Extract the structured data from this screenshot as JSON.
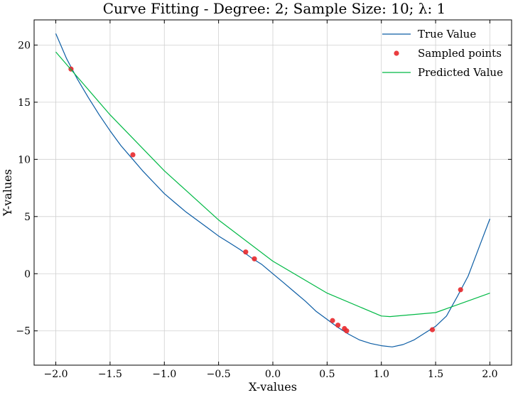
{
  "chart_data": {
    "type": "line",
    "title": "Curve Fitting - Degree: 2; Sample Size: 10; λ: 1",
    "xlabel": "X-values",
    "ylabel": "Y-values",
    "xlim": [
      -2.2,
      2.2
    ],
    "ylim": [
      -8.0,
      22.2
    ],
    "xticks": [
      -2.0,
      -1.5,
      -1.0,
      -0.5,
      0.0,
      0.5,
      1.0,
      1.5,
      2.0
    ],
    "xtick_labels": [
      "−2.0",
      "−1.5",
      "−1.0",
      "−0.5",
      "0.0",
      "0.5",
      "1.0",
      "1.5",
      "2.0"
    ],
    "yticks": [
      -5,
      0,
      5,
      10,
      15,
      20
    ],
    "ytick_labels": [
      "−5",
      "0",
      "5",
      "10",
      "15",
      "20"
    ],
    "grid": true,
    "legend_position": "top-right",
    "series": [
      {
        "name": "True Value",
        "kind": "line",
        "color": "#0C5DA5",
        "x": [
          -2.0,
          -1.9,
          -1.8,
          -1.7,
          -1.6,
          -1.5,
          -1.4,
          -1.3,
          -1.2,
          -1.1,
          -1.0,
          -0.9,
          -0.8,
          -0.7,
          -0.6,
          -0.5,
          -0.4,
          -0.3,
          -0.2,
          -0.1,
          0.0,
          0.1,
          0.2,
          0.3,
          0.4,
          0.5,
          0.6,
          0.7,
          0.8,
          0.9,
          1.0,
          1.1,
          1.2,
          1.3,
          1.4,
          1.5,
          1.6,
          1.7,
          1.8,
          1.9,
          2.0
        ],
        "y": [
          21.0,
          18.8,
          17.0,
          15.4,
          13.9,
          12.5,
          11.2,
          10.1,
          9.0,
          8.0,
          7.0,
          6.2,
          5.4,
          4.7,
          4.0,
          3.3,
          2.7,
          2.1,
          1.4,
          0.8,
          0.0,
          -0.8,
          -1.6,
          -2.4,
          -3.3,
          -4.0,
          -4.7,
          -5.3,
          -5.8,
          -6.1,
          -6.3,
          -6.4,
          -6.2,
          -5.8,
          -5.2,
          -4.6,
          -3.7,
          -2.0,
          -0.2,
          2.3,
          4.8
        ]
      },
      {
        "name": "Sampled points",
        "kind": "scatter",
        "color": "#E8282B",
        "x": [
          -1.86,
          -1.29,
          -0.25,
          -0.17,
          0.55,
          0.6,
          0.66,
          0.68,
          1.47,
          1.73
        ],
        "y": [
          17.9,
          10.4,
          1.9,
          1.3,
          -4.1,
          -4.5,
          -4.8,
          -5.0,
          -4.9,
          -1.4
        ]
      },
      {
        "name": "Predicted Value",
        "kind": "line",
        "color": "#00B945",
        "x": [
          -2.0,
          -1.5,
          -1.0,
          -0.5,
          0.0,
          0.5,
          1.0,
          1.08,
          1.5,
          2.0
        ],
        "y": [
          19.4,
          13.9,
          9.0,
          4.7,
          1.1,
          -1.7,
          -3.7,
          -3.75,
          -3.4,
          -1.7
        ]
      }
    ]
  }
}
